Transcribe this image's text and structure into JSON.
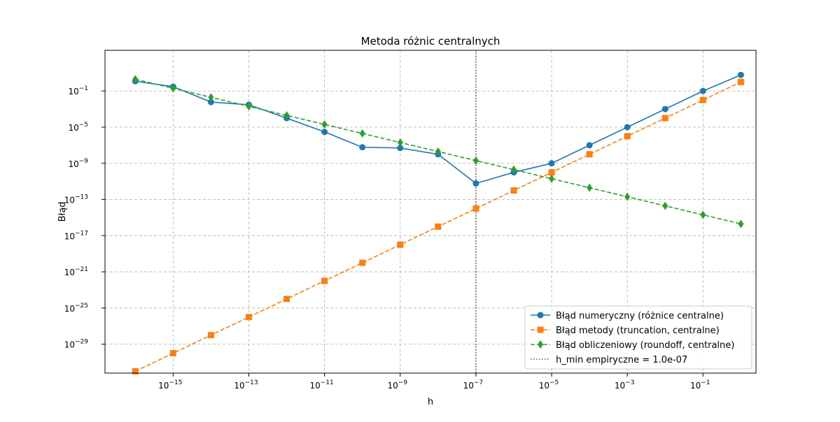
{
  "chart_data": {
    "type": "line",
    "title": "Metoda różnic centralnych",
    "xlabel": "h",
    "ylabel": "Błąd",
    "xscale": "log",
    "yscale": "log",
    "xlim_exp": [
      -16.8,
      0.4
    ],
    "ylim_exp": [
      -32.2,
      3.5
    ],
    "x_ticks": [
      {
        "exp": -15,
        "label": "10",
        "sup": "−15"
      },
      {
        "exp": -13,
        "label": "10",
        "sup": "−13"
      },
      {
        "exp": -11,
        "label": "10",
        "sup": "−11"
      },
      {
        "exp": -9,
        "label": "10",
        "sup": "−9"
      },
      {
        "exp": -7,
        "label": "10",
        "sup": "−7"
      },
      {
        "exp": -5,
        "label": "10",
        "sup": "−5"
      },
      {
        "exp": -3,
        "label": "10",
        "sup": "−3"
      },
      {
        "exp": -1,
        "label": "10",
        "sup": "−1"
      }
    ],
    "y_ticks": [
      {
        "exp": -29,
        "label": "10",
        "sup": "−29"
      },
      {
        "exp": -25,
        "label": "10",
        "sup": "−25"
      },
      {
        "exp": -21,
        "label": "10",
        "sup": "−21"
      },
      {
        "exp": -17,
        "label": "10",
        "sup": "−17"
      },
      {
        "exp": -13,
        "label": "10",
        "sup": "−13"
      },
      {
        "exp": -9,
        "label": "10",
        "sup": "−9"
      },
      {
        "exp": -5,
        "label": "10",
        "sup": "−5"
      },
      {
        "exp": -1,
        "label": "10",
        "sup": "−1"
      }
    ],
    "grid": true,
    "legend_position": "lower-right",
    "x": [
      1e-16,
      1e-15,
      1e-14,
      1e-13,
      1e-12,
      1e-11,
      1e-10,
      1e-09,
      1e-08,
      1e-07,
      1e-06,
      1e-05,
      0.0001,
      0.001,
      0.01,
      0.1,
      1
    ],
    "series": [
      {
        "name": "Błąd numeryczny (różnice centralne)",
        "color": "#1f77b4",
        "marker": "circle",
        "linestyle": "solid",
        "values": [
          1.2,
          0.3,
          0.006,
          0.003,
          0.0001,
          3e-06,
          6e-08,
          5e-08,
          1e-08,
          6e-12,
          1e-10,
          1e-09,
          1e-07,
          1e-05,
          0.001,
          0.1,
          6
        ]
      },
      {
        "name": "Błąd metody (truncation, centralne)",
        "color": "#ff7f0e",
        "marker": "square",
        "linestyle": "dashed",
        "values": [
          1e-32,
          1e-30,
          1e-28,
          1e-26,
          1e-24,
          1e-22,
          1e-20,
          1e-18,
          1e-16,
          1e-14,
          1e-12,
          1e-10,
          1e-08,
          1e-06,
          0.0001,
          0.01,
          1
        ]
      },
      {
        "name": "Błąd obliczeniowy (roundoff, centralne)",
        "color": "#2ca02c",
        "marker": "diamond",
        "linestyle": "dashed",
        "values": [
          2,
          0.2,
          0.02,
          0.002,
          0.0002,
          2e-05,
          2e-06,
          2e-07,
          2e-08,
          2e-09,
          2e-10,
          2e-11,
          2e-12,
          2e-13,
          2e-14,
          2e-15,
          2e-16
        ]
      }
    ],
    "vline": {
      "x": 1e-07,
      "name": "h_min empiryczne = 1.0e-07",
      "color": "#555555",
      "linestyle": "dotted"
    }
  }
}
